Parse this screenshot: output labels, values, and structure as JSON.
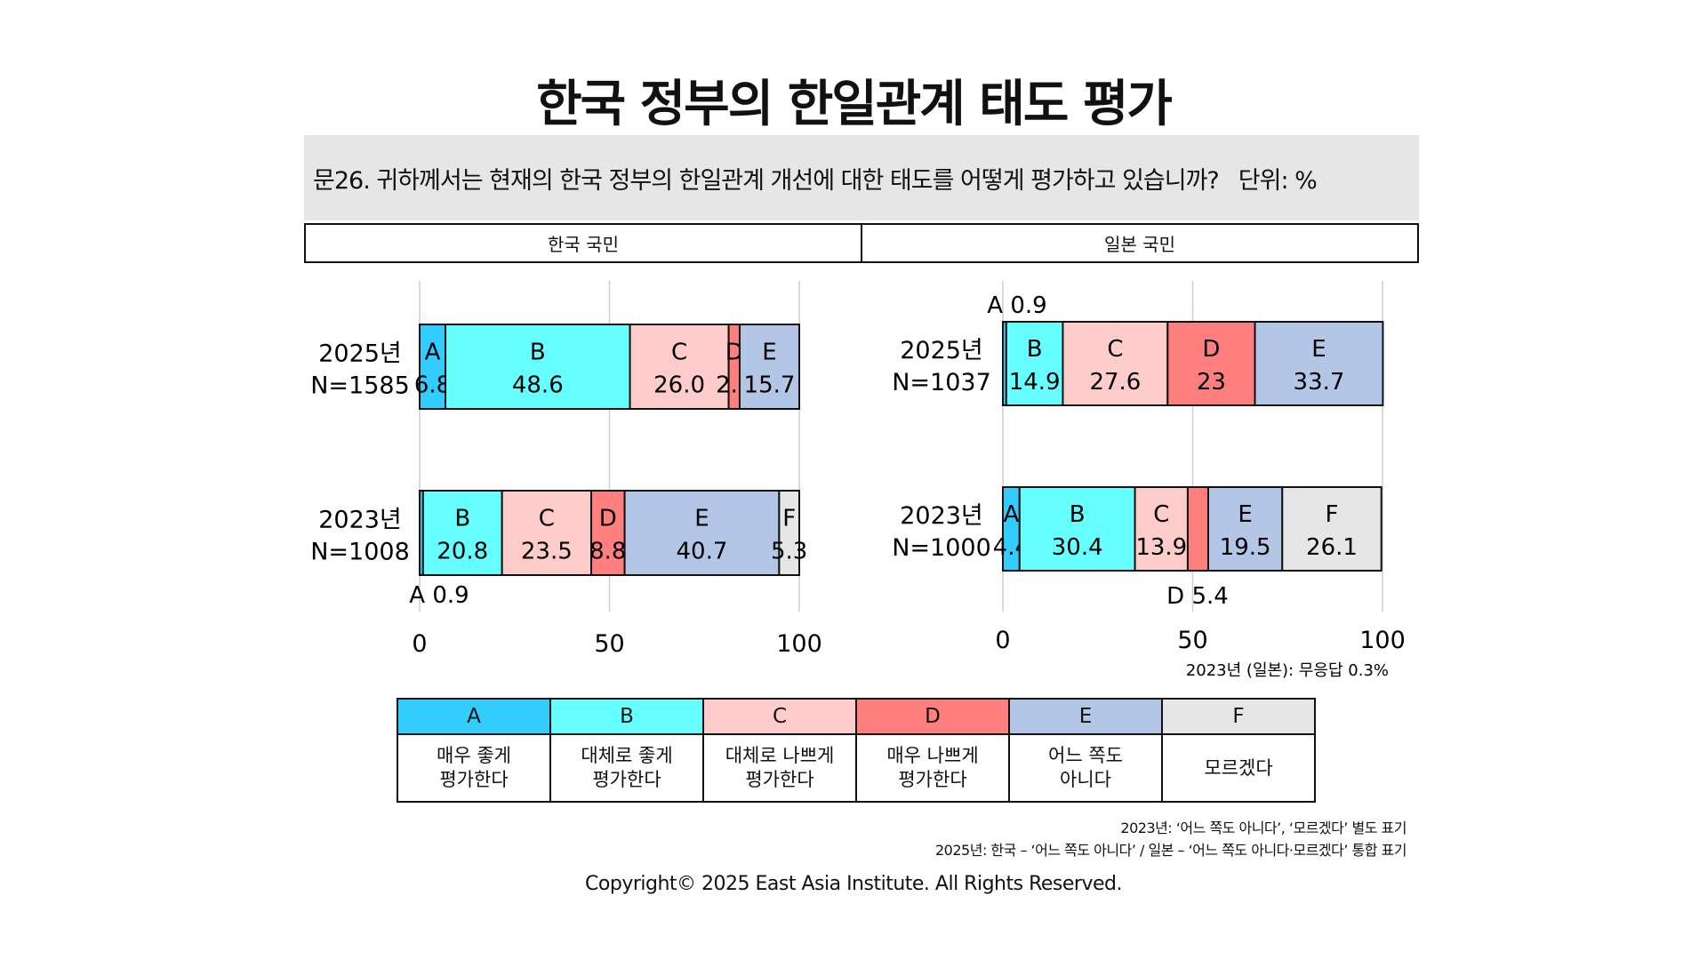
{
  "title": "한국 정부의 한일관계 태도 평가",
  "question": "문26. 귀하께서는 현재의 한국 정부의 한일관계 개선에 대한 태도를 어떻게 평가하고 있습니까?",
  "unit_label": "단위: %",
  "panels": {
    "left": "한국 국민",
    "right": "일본 국민"
  },
  "colors": {
    "A": "#33ccff",
    "B": "#66ffff",
    "C": "#ffcccc",
    "D": "#ff7f7f",
    "E": "#b3c6e6",
    "F": "#e6e6e6"
  },
  "chart_data": [
    {
      "type": "bar",
      "orientation": "horizontal",
      "stacked": true,
      "panel": "한국 국민",
      "xlim": [
        0,
        100
      ],
      "xticks": [
        0,
        50,
        100
      ],
      "grid": true,
      "rows": [
        {
          "label_year": "2025년",
          "label_n": "N=1585",
          "segments": [
            {
              "code": "A",
              "value": 6.8
            },
            {
              "code": "B",
              "value": 48.6
            },
            {
              "code": "C",
              "value": 26.0,
              "text": "26.0"
            },
            {
              "code": "D",
              "value": 2.9
            },
            {
              "code": "E",
              "value": 15.7
            }
          ]
        },
        {
          "label_year": "2023년",
          "label_n": "N=1008",
          "segments": [
            {
              "code": "A",
              "value": 0.9,
              "outside_label": "A 0.9"
            },
            {
              "code": "B",
              "value": 20.8
            },
            {
              "code": "C",
              "value": 23.5
            },
            {
              "code": "D",
              "value": 8.8
            },
            {
              "code": "E",
              "value": 40.7
            },
            {
              "code": "F",
              "value": 5.3
            }
          ]
        }
      ]
    },
    {
      "type": "bar",
      "orientation": "horizontal",
      "stacked": true,
      "panel": "일본 국민",
      "xlim": [
        0,
        100
      ],
      "xticks": [
        0,
        50,
        100
      ],
      "grid": true,
      "rows": [
        {
          "label_year": "2025년",
          "label_n": "N=1037",
          "segments": [
            {
              "code": "A",
              "value": 0.9,
              "outside_label": "A 0.9"
            },
            {
              "code": "B",
              "value": 14.9
            },
            {
              "code": "C",
              "value": 27.6
            },
            {
              "code": "D",
              "value": 23
            },
            {
              "code": "E",
              "value": 33.7
            }
          ]
        },
        {
          "label_year": "2023년",
          "label_n": "N=1000",
          "segments": [
            {
              "code": "A",
              "value": 4.4
            },
            {
              "code": "B",
              "value": 30.4
            },
            {
              "code": "C",
              "value": 13.9
            },
            {
              "code": "D",
              "value": 5.4,
              "outside_label": "D 5.4"
            },
            {
              "code": "E",
              "value": 19.5
            },
            {
              "code": "F",
              "value": 26.1
            }
          ]
        }
      ],
      "note": "2023년 (일본): 무응답 0.3%"
    }
  ],
  "legend": [
    {
      "code": "A",
      "text": "매우 좋게 평가한다"
    },
    {
      "code": "B",
      "text": "대체로 좋게 평가한다"
    },
    {
      "code": "C",
      "text": "대체로 나쁘게 평가한다"
    },
    {
      "code": "D",
      "text": "매우 나쁘게 평가한다"
    },
    {
      "code": "E",
      "text": "어느 쪽도 아니다"
    },
    {
      "code": "F",
      "text": "모르겠다"
    }
  ],
  "notes": [
    "2023년: ‘어느 쪽도 아니다’, ‘모르겠다’ 별도 표기",
    "2025년: 한국 – ‘어느 쪽도 아니다’ / 일본 – ‘어느 쪽도 아니다·모르겠다’ 통합 표기"
  ],
  "copyright": "Copyright© 2025 East Asia Institute. All Rights Reserved."
}
